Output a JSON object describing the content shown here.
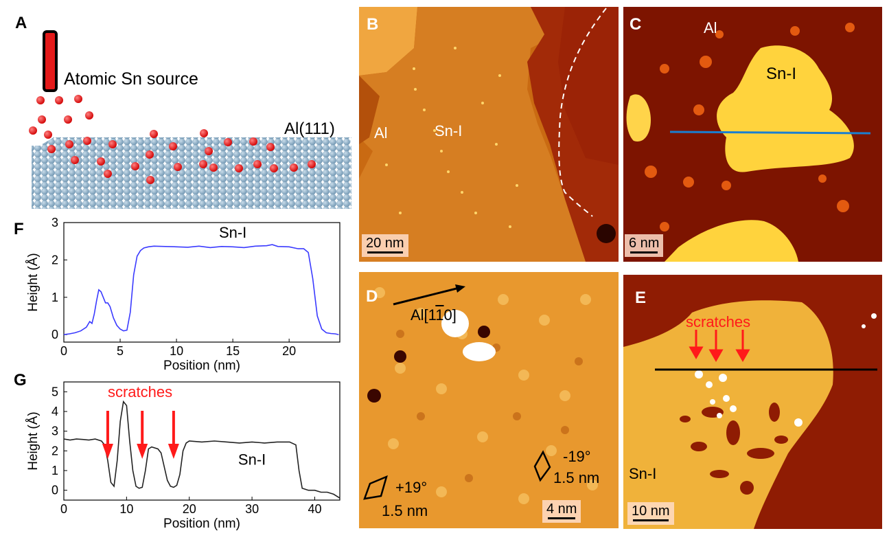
{
  "panels": {
    "A": {
      "letter": "A",
      "source_label": "Atomic Sn source",
      "substrate_label": "Al(111)"
    },
    "B": {
      "letter": "B",
      "label_al": "Al",
      "label_sn": "Sn-I",
      "scale": "20 nm"
    },
    "C": {
      "letter": "C",
      "label_al": "Al",
      "label_sn": "Sn-I",
      "scale": "6 nm"
    },
    "D": {
      "letter": "D",
      "direction": "Al[1",
      "direction_bar": "1",
      "direction_end": "0]",
      "left_angle": "+19°",
      "left_len": "1.5 nm",
      "right_angle": "-19°",
      "right_len": "1.5 nm",
      "scale": "4 nm"
    },
    "E": {
      "letter": "E",
      "scratches": "scratches",
      "label_sn": "Sn-I",
      "scale": "10 nm"
    },
    "F": {
      "letter": "F"
    },
    "G": {
      "letter": "G"
    }
  },
  "chart_data": [
    {
      "id": "F",
      "type": "line",
      "annotation": "Sn-I",
      "xlabel": "Position (nm)",
      "ylabel": "Height (Å)",
      "xlim": [
        0,
        24.5
      ],
      "ylim": [
        -0.2,
        3
      ],
      "xticks": [
        0,
        5,
        10,
        15,
        20
      ],
      "yticks": [
        0,
        1,
        2,
        3
      ],
      "color": "#3a3aff",
      "x": [
        0,
        0.5,
        1,
        1.5,
        2,
        2.3,
        2.5,
        2.7,
        2.9,
        3.1,
        3.3,
        3.5,
        3.7,
        3.9,
        4.1,
        4.4,
        4.7,
        5.0,
        5.3,
        5.6,
        5.9,
        6.2,
        6.5,
        6.8,
        7.1,
        7.5,
        8,
        9,
        10,
        11,
        12,
        13,
        14,
        15,
        16,
        17,
        18,
        18.5,
        19,
        20,
        20.8,
        21.3,
        21.7,
        22.1,
        22.5,
        22.9,
        23.3,
        23.7,
        24.1,
        24.4
      ],
      "y": [
        0.0,
        0.02,
        0.05,
        0.1,
        0.2,
        0.35,
        0.3,
        0.55,
        0.9,
        1.2,
        1.15,
        1.0,
        0.85,
        0.85,
        0.75,
        0.45,
        0.25,
        0.15,
        0.1,
        0.12,
        0.6,
        1.6,
        2.1,
        2.25,
        2.32,
        2.35,
        2.37,
        2.36,
        2.35,
        2.34,
        2.37,
        2.33,
        2.36,
        2.35,
        2.33,
        2.37,
        2.38,
        2.41,
        2.36,
        2.35,
        2.3,
        2.3,
        2.2,
        1.5,
        0.5,
        0.15,
        0.05,
        0.03,
        0.02,
        0.0
      ]
    },
    {
      "id": "G",
      "type": "line",
      "annotation": "Sn-I",
      "scratches_label": "scratches",
      "xlabel": "Position (nm)",
      "ylabel": "Height (Å)",
      "xlim": [
        0,
        44
      ],
      "ylim": [
        -0.5,
        5.5
      ],
      "xticks": [
        0,
        10,
        20,
        30,
        40
      ],
      "yticks": [
        0,
        1,
        2,
        3,
        4,
        5
      ],
      "color": "#222222",
      "arrows_x": [
        7,
        12.5,
        17.5
      ],
      "x": [
        0,
        1,
        2,
        3,
        4,
        5,
        6,
        6.5,
        7,
        7.5,
        8,
        8.5,
        9,
        9.5,
        10,
        10.5,
        11,
        11.5,
        12,
        12.5,
        13,
        13.5,
        14,
        15,
        15.5,
        16,
        16.5,
        17,
        17.5,
        18,
        18.5,
        19,
        19.5,
        20,
        22,
        24,
        26,
        28,
        30,
        32,
        34,
        36,
        37,
        37.5,
        38,
        38.5,
        39,
        40,
        41,
        42,
        43,
        44
      ],
      "y": [
        2.6,
        2.55,
        2.6,
        2.58,
        2.55,
        2.6,
        2.5,
        2.3,
        1.5,
        0.4,
        0.2,
        1.5,
        3.5,
        4.5,
        4.3,
        2.5,
        1.0,
        0.2,
        0.1,
        0.15,
        1.0,
        2.1,
        2.2,
        2.1,
        1.9,
        1.2,
        0.5,
        0.2,
        0.15,
        0.25,
        0.8,
        2.0,
        2.4,
        2.5,
        2.45,
        2.5,
        2.45,
        2.4,
        2.45,
        2.4,
        2.45,
        2.45,
        2.3,
        1.0,
        0.1,
        0.05,
        0.0,
        0.0,
        -0.1,
        -0.1,
        -0.2,
        -0.4
      ]
    }
  ]
}
